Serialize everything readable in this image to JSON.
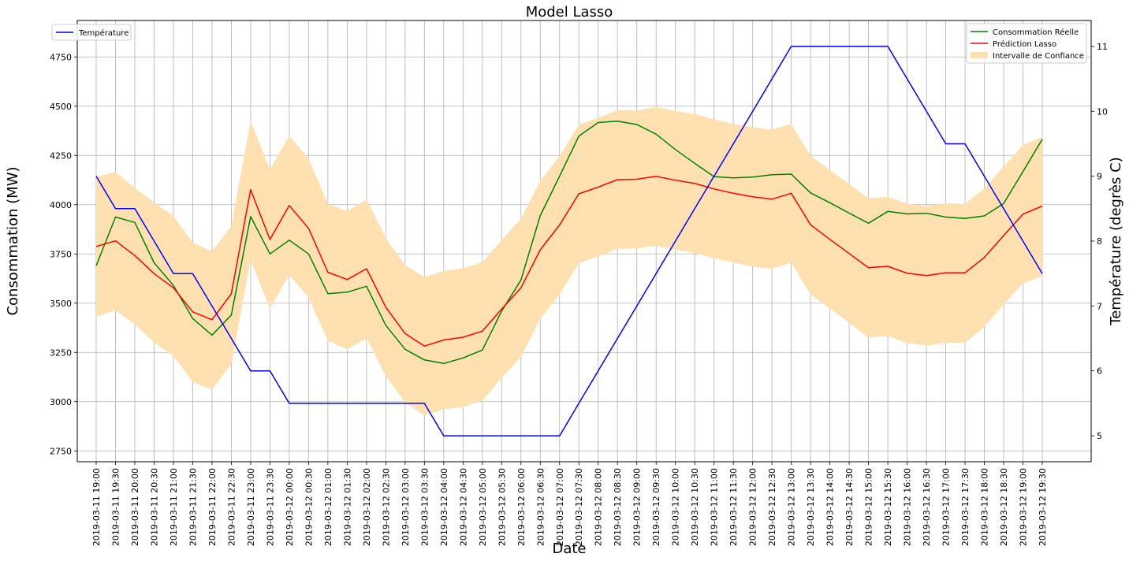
{
  "chart_data": {
    "type": "line",
    "title": "Model Lasso",
    "xlabel": "Date",
    "ylabel": "Consommation (MW)",
    "y2label": "Température (degrès C)",
    "ylim": [
      2695,
      4935
    ],
    "y2lim": [
      4.6,
      11.4
    ],
    "yticks": [
      2750,
      3000,
      3250,
      3500,
      3750,
      4000,
      4250,
      4500,
      4750
    ],
    "y2ticks": [
      5,
      6,
      7,
      8,
      9,
      10,
      11
    ],
    "grid": true,
    "x": [
      "2019-03-11 19:00",
      "2019-03-11 19:30",
      "2019-03-11 20:00",
      "2019-03-11 20:30",
      "2019-03-11 21:00",
      "2019-03-11 21:30",
      "2019-03-11 22:00",
      "2019-03-11 22:30",
      "2019-03-11 23:00",
      "2019-03-11 23:30",
      "2019-03-12 00:00",
      "2019-03-12 00:30",
      "2019-03-12 01:00",
      "2019-03-12 01:30",
      "2019-03-12 02:00",
      "2019-03-12 02:30",
      "2019-03-12 03:00",
      "2019-03-12 03:30",
      "2019-03-12 04:00",
      "2019-03-12 04:30",
      "2019-03-12 05:00",
      "2019-03-12 05:30",
      "2019-03-12 06:00",
      "2019-03-12 06:30",
      "2019-03-12 07:00",
      "2019-03-12 07:30",
      "2019-03-12 08:00",
      "2019-03-12 08:30",
      "2019-03-12 09:00",
      "2019-03-12 09:30",
      "2019-03-12 10:00",
      "2019-03-12 10:30",
      "2019-03-12 11:00",
      "2019-03-12 11:30",
      "2019-03-12 12:00",
      "2019-03-12 12:30",
      "2019-03-12 13:00",
      "2019-03-12 13:30",
      "2019-03-12 14:00",
      "2019-03-12 14:30",
      "2019-03-12 15:00",
      "2019-03-12 15:30",
      "2019-03-12 16:00",
      "2019-03-12 16:30",
      "2019-03-12 17:00",
      "2019-03-12 17:30",
      "2019-03-12 18:00",
      "2019-03-12 18:30",
      "2019-03-12 19:00",
      "2019-03-12 19:30"
    ],
    "series": [
      {
        "name": "Consommation Réelle",
        "color": "#008000",
        "axis": "left",
        "values": [
          3690,
          3937,
          3910,
          3705,
          3590,
          3422,
          3338,
          3440,
          3940,
          3750,
          3820,
          3750,
          3548,
          3556,
          3586,
          3388,
          3266,
          3212,
          3194,
          3222,
          3262,
          3460,
          3618,
          3945,
          4145,
          4348,
          4417,
          4424,
          4407,
          4358,
          4280,
          4210,
          4142,
          4136,
          4140,
          4152,
          4155,
          4060,
          4010,
          3957,
          3906,
          3966,
          3953,
          3956,
          3937,
          3930,
          3943,
          4006,
          4168,
          4332
        ]
      },
      {
        "name": "Prédiction Lasso",
        "color": "#ff0000",
        "axis": "left",
        "values": [
          3788,
          3816,
          3742,
          3650,
          3578,
          3456,
          3416,
          3548,
          4076,
          3823,
          3996,
          3880,
          3657,
          3620,
          3675,
          3480,
          3346,
          3282,
          3313,
          3327,
          3358,
          3470,
          3578,
          3771,
          3897,
          4055,
          4089,
          4127,
          4129,
          4144,
          4124,
          4108,
          4080,
          4058,
          4040,
          4028,
          4058,
          3898,
          3824,
          3752,
          3680,
          3687,
          3652,
          3640,
          3654,
          3654,
          3732,
          3843,
          3952,
          3993
        ]
      },
      {
        "name": "Température",
        "color": "#0000ff",
        "axis": "right",
        "values": [
          9,
          8.5,
          8.5,
          8,
          7.5,
          7.5,
          7,
          6.5,
          6,
          6,
          5.5,
          5.5,
          5.5,
          5.5,
          5.5,
          5.5,
          5.5,
          5.5,
          5,
          5,
          5,
          5,
          5,
          5,
          5,
          5.5,
          6,
          6.5,
          7,
          7.5,
          8,
          8.5,
          9,
          9.5,
          10,
          10.5,
          11,
          11,
          11,
          11,
          11,
          11,
          10.5,
          10,
          9.5,
          9.5,
          9,
          8.5,
          8,
          7.5
        ]
      }
    ],
    "band": {
      "name": "Intervalle de Confiance",
      "color": "#ffe0b0",
      "upper": [
        4142,
        4166,
        4085,
        4010,
        3942,
        3808,
        3762,
        3893,
        4425,
        4178,
        4349,
        4234,
        4004,
        3966,
        4026,
        3831,
        3693,
        3633,
        3663,
        3677,
        3708,
        3821,
        3929,
        4122,
        4246,
        4406,
        4441,
        4480,
        4478,
        4495,
        4476,
        4460,
        4433,
        4410,
        4394,
        4380,
        4410,
        4248,
        4175,
        4105,
        4032,
        4040,
        4005,
        3992,
        4007,
        4004,
        4083,
        4193,
        4303,
        4344
      ],
      "lower": [
        3432,
        3464,
        3392,
        3300,
        3232,
        3100,
        3060,
        3192,
        3720,
        3472,
        3644,
        3528,
        3308,
        3266,
        3322,
        3130,
        2996,
        2930,
        2962,
        2972,
        3005,
        3120,
        3227,
        3420,
        3546,
        3703,
        3737,
        3776,
        3778,
        3791,
        3772,
        3754,
        3728,
        3706,
        3686,
        3675,
        3706,
        3545,
        3473,
        3400,
        3326,
        3333,
        3298,
        3284,
        3300,
        3298,
        3380,
        3494,
        3600,
        3638
      ]
    },
    "legend_left": {
      "placement": "top-left",
      "entries": [
        "Température"
      ]
    },
    "legend_right": {
      "placement": "top-right",
      "entries": [
        "Consommation Réelle",
        "Prédiction Lasso",
        "Intervalle de Confiance"
      ]
    }
  }
}
